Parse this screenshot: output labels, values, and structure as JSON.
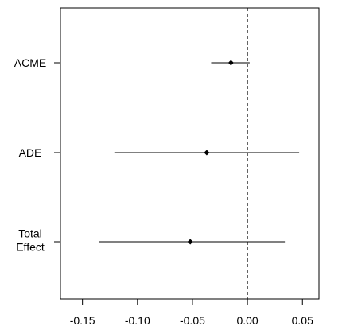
{
  "chart_data": {
    "type": "forest",
    "title": "",
    "xlabel": "",
    "ylabel": "",
    "xlim": [
      -0.17,
      0.065
    ],
    "x_ticks": [
      -0.15,
      -0.1,
      -0.05,
      0.0,
      0.05
    ],
    "x_tick_labels": [
      "-0.15",
      "-0.10",
      "-0.05",
      "0.00",
      "0.05"
    ],
    "reference_line": 0,
    "grid": false,
    "legend": false,
    "rows": [
      {
        "label_lines": [
          "ACME"
        ],
        "estimate": -0.015,
        "lower": -0.033,
        "upper": 0.002
      },
      {
        "label_lines": [
          "ADE"
        ],
        "estimate": -0.037,
        "lower": -0.121,
        "upper": 0.047
      },
      {
        "label_lines": [
          "Total",
          "Effect"
        ],
        "estimate": -0.052,
        "lower": -0.135,
        "upper": 0.034
      }
    ]
  }
}
